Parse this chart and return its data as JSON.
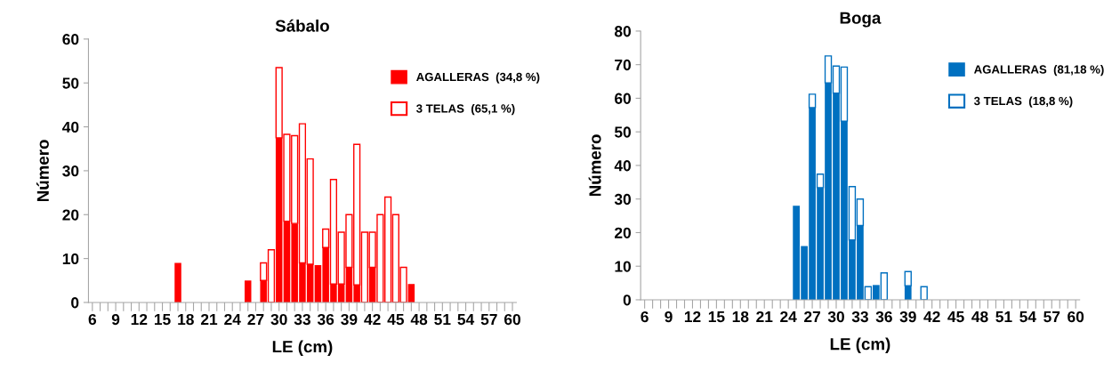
{
  "chart_data": [
    {
      "type": "bar",
      "title": "Sábalo",
      "xlabel": "LE (cm)",
      "ylabel": "Número",
      "stacked": true,
      "legend": "top right",
      "grid": false,
      "categories": [
        "6",
        null,
        null,
        "9",
        null,
        null,
        "12",
        null,
        null,
        "15",
        null,
        null,
        "18",
        null,
        null,
        "21",
        null,
        null,
        "24",
        null,
        null,
        "27",
        null,
        null,
        "30",
        null,
        null,
        "33",
        null,
        null,
        "36",
        null,
        null,
        "39",
        null,
        null,
        "42",
        null,
        null,
        "45",
        null,
        null,
        "48",
        null,
        null,
        "51",
        null,
        null,
        "54",
        null,
        null,
        "57",
        null,
        null,
        "60"
      ],
      "ylim": [
        0,
        60
      ],
      "yticks": [
        0,
        10,
        20,
        30,
        40,
        50,
        60
      ],
      "series": [
        {
          "name": "AGALLERAS  (34,8 %)",
          "color": "#ff0000",
          "values": [
            null,
            null,
            null,
            null,
            null,
            null,
            null,
            null,
            null,
            null,
            null,
            9,
            null,
            null,
            null,
            null,
            null,
            null,
            null,
            null,
            5,
            null,
            5,
            null,
            37.5,
            18.5,
            18,
            9,
            8.7,
            8.5,
            12.5,
            4.2,
            4.2,
            8,
            4,
            null,
            8,
            null,
            null,
            null,
            null,
            4.2,
            null,
            null,
            null,
            null,
            null,
            null,
            null,
            null,
            null,
            null,
            null,
            null,
            null
          ]
        },
        {
          "name": "3 TELAS  (65,1 %)",
          "color": "#ff0000",
          "values": [
            null,
            null,
            null,
            null,
            null,
            null,
            null,
            null,
            null,
            null,
            null,
            null,
            null,
            null,
            null,
            null,
            null,
            null,
            null,
            null,
            null,
            null,
            4,
            12,
            16,
            19.8,
            20,
            31.7,
            24,
            null,
            4.2,
            23.8,
            11.8,
            12,
            32,
            16,
            8,
            20,
            24,
            20,
            8,
            null,
            null,
            null,
            null,
            null,
            null,
            null,
            null,
            null,
            null,
            null,
            null,
            null,
            null
          ]
        }
      ]
    },
    {
      "type": "bar",
      "title": "Boga",
      "xlabel": "LE (cm)",
      "ylabel": "Número",
      "stacked": true,
      "legend": "top right",
      "grid": false,
      "categories": [
        "6",
        null,
        null,
        "9",
        null,
        null,
        "12",
        null,
        null,
        "15",
        null,
        null,
        "18",
        null,
        null,
        "21",
        null,
        null,
        "24",
        null,
        null,
        "27",
        null,
        null,
        "30",
        null,
        null,
        "33",
        null,
        null,
        "36",
        null,
        null,
        "39",
        null,
        null,
        "42",
        null,
        null,
        "45",
        null,
        null,
        "48",
        null,
        null,
        "51",
        null,
        null,
        "54",
        null,
        null,
        "57",
        null,
        null,
        "60"
      ],
      "ylim": [
        0,
        80
      ],
      "yticks": [
        0,
        10,
        20,
        30,
        40,
        50,
        60,
        70,
        80
      ],
      "series": [
        {
          "name": "AGALLERAS  (81,18 %)",
          "color": "#0070c0",
          "values": [
            null,
            null,
            null,
            null,
            null,
            null,
            null,
            null,
            null,
            null,
            null,
            null,
            null,
            null,
            null,
            null,
            null,
            null,
            null,
            28,
            16,
            57.2,
            33.4,
            64.6,
            61.5,
            53.2,
            17.8,
            22.1,
            null,
            4.4,
            null,
            null,
            null,
            4.2,
            null,
            null,
            null,
            null,
            null,
            null,
            null,
            null,
            null,
            null,
            null,
            null,
            null,
            null,
            null,
            null,
            null,
            null,
            null,
            null,
            null
          ]
        },
        {
          "name": "3 TELAS  (18,8 %)",
          "color": "#0070c0",
          "values": [
            null,
            null,
            null,
            null,
            null,
            null,
            null,
            null,
            null,
            null,
            null,
            null,
            null,
            null,
            null,
            null,
            null,
            null,
            null,
            null,
            null,
            4,
            4,
            8,
            8.1,
            16.1,
            15.9,
            7.9,
            3.9,
            null,
            8,
            null,
            null,
            4.2,
            null,
            3.9,
            null,
            null,
            null,
            null,
            null,
            null,
            null,
            null,
            null,
            null,
            null,
            null,
            null,
            null,
            null,
            null,
            null,
            null,
            null
          ]
        }
      ]
    }
  ]
}
